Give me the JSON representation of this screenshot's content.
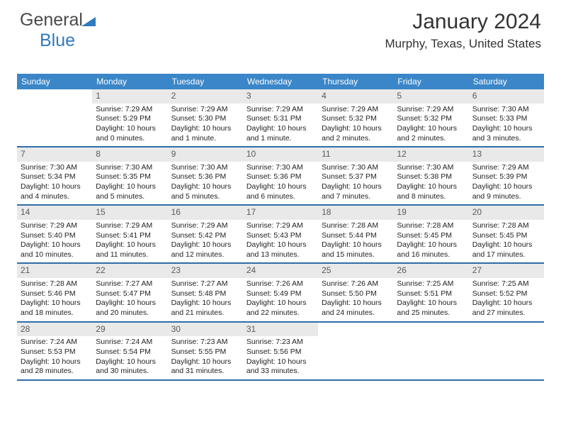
{
  "logo": {
    "part1": "General",
    "part2": "Blue"
  },
  "header": {
    "month_year": "January 2024",
    "location": "Murphy, Texas, United States"
  },
  "style": {
    "header_bg": "#3a86c8",
    "header_fg": "#ffffff",
    "daynum_bg": "#e9e9e9",
    "daynum_fg": "#5a5a5a",
    "row_border": "#2f6ea8",
    "body_fg": "#222222",
    "title_fg": "#333333",
    "logo_blue": "#2f7bbf",
    "logo_gray": "#4a4a4a",
    "th_fontsize": 12,
    "daynum_fontsize": 12,
    "body_fontsize": 10.5,
    "title_fontsize": 30,
    "loc_fontsize": 17
  },
  "weekdays": [
    "Sunday",
    "Monday",
    "Tuesday",
    "Wednesday",
    "Thursday",
    "Friday",
    "Saturday"
  ],
  "cells": [
    {
      "n": "",
      "sr": "",
      "ss": "",
      "dl": ""
    },
    {
      "n": "1",
      "sr": "Sunrise: 7:29 AM",
      "ss": "Sunset: 5:29 PM",
      "dl": "Daylight: 10 hours and 0 minutes."
    },
    {
      "n": "2",
      "sr": "Sunrise: 7:29 AM",
      "ss": "Sunset: 5:30 PM",
      "dl": "Daylight: 10 hours and 1 minute."
    },
    {
      "n": "3",
      "sr": "Sunrise: 7:29 AM",
      "ss": "Sunset: 5:31 PM",
      "dl": "Daylight: 10 hours and 1 minute."
    },
    {
      "n": "4",
      "sr": "Sunrise: 7:29 AM",
      "ss": "Sunset: 5:32 PM",
      "dl": "Daylight: 10 hours and 2 minutes."
    },
    {
      "n": "5",
      "sr": "Sunrise: 7:29 AM",
      "ss": "Sunset: 5:32 PM",
      "dl": "Daylight: 10 hours and 2 minutes."
    },
    {
      "n": "6",
      "sr": "Sunrise: 7:30 AM",
      "ss": "Sunset: 5:33 PM",
      "dl": "Daylight: 10 hours and 3 minutes."
    },
    {
      "n": "7",
      "sr": "Sunrise: 7:30 AM",
      "ss": "Sunset: 5:34 PM",
      "dl": "Daylight: 10 hours and 4 minutes."
    },
    {
      "n": "8",
      "sr": "Sunrise: 7:30 AM",
      "ss": "Sunset: 5:35 PM",
      "dl": "Daylight: 10 hours and 5 minutes."
    },
    {
      "n": "9",
      "sr": "Sunrise: 7:30 AM",
      "ss": "Sunset: 5:36 PM",
      "dl": "Daylight: 10 hours and 5 minutes."
    },
    {
      "n": "10",
      "sr": "Sunrise: 7:30 AM",
      "ss": "Sunset: 5:36 PM",
      "dl": "Daylight: 10 hours and 6 minutes."
    },
    {
      "n": "11",
      "sr": "Sunrise: 7:30 AM",
      "ss": "Sunset: 5:37 PM",
      "dl": "Daylight: 10 hours and 7 minutes."
    },
    {
      "n": "12",
      "sr": "Sunrise: 7:30 AM",
      "ss": "Sunset: 5:38 PM",
      "dl": "Daylight: 10 hours and 8 minutes."
    },
    {
      "n": "13",
      "sr": "Sunrise: 7:29 AM",
      "ss": "Sunset: 5:39 PM",
      "dl": "Daylight: 10 hours and 9 minutes."
    },
    {
      "n": "14",
      "sr": "Sunrise: 7:29 AM",
      "ss": "Sunset: 5:40 PM",
      "dl": "Daylight: 10 hours and 10 minutes."
    },
    {
      "n": "15",
      "sr": "Sunrise: 7:29 AM",
      "ss": "Sunset: 5:41 PM",
      "dl": "Daylight: 10 hours and 11 minutes."
    },
    {
      "n": "16",
      "sr": "Sunrise: 7:29 AM",
      "ss": "Sunset: 5:42 PM",
      "dl": "Daylight: 10 hours and 12 minutes."
    },
    {
      "n": "17",
      "sr": "Sunrise: 7:29 AM",
      "ss": "Sunset: 5:43 PM",
      "dl": "Daylight: 10 hours and 13 minutes."
    },
    {
      "n": "18",
      "sr": "Sunrise: 7:28 AM",
      "ss": "Sunset: 5:44 PM",
      "dl": "Daylight: 10 hours and 15 minutes."
    },
    {
      "n": "19",
      "sr": "Sunrise: 7:28 AM",
      "ss": "Sunset: 5:45 PM",
      "dl": "Daylight: 10 hours and 16 minutes."
    },
    {
      "n": "20",
      "sr": "Sunrise: 7:28 AM",
      "ss": "Sunset: 5:45 PM",
      "dl": "Daylight: 10 hours and 17 minutes."
    },
    {
      "n": "21",
      "sr": "Sunrise: 7:28 AM",
      "ss": "Sunset: 5:46 PM",
      "dl": "Daylight: 10 hours and 18 minutes."
    },
    {
      "n": "22",
      "sr": "Sunrise: 7:27 AM",
      "ss": "Sunset: 5:47 PM",
      "dl": "Daylight: 10 hours and 20 minutes."
    },
    {
      "n": "23",
      "sr": "Sunrise: 7:27 AM",
      "ss": "Sunset: 5:48 PM",
      "dl": "Daylight: 10 hours and 21 minutes."
    },
    {
      "n": "24",
      "sr": "Sunrise: 7:26 AM",
      "ss": "Sunset: 5:49 PM",
      "dl": "Daylight: 10 hours and 22 minutes."
    },
    {
      "n": "25",
      "sr": "Sunrise: 7:26 AM",
      "ss": "Sunset: 5:50 PM",
      "dl": "Daylight: 10 hours and 24 minutes."
    },
    {
      "n": "26",
      "sr": "Sunrise: 7:25 AM",
      "ss": "Sunset: 5:51 PM",
      "dl": "Daylight: 10 hours and 25 minutes."
    },
    {
      "n": "27",
      "sr": "Sunrise: 7:25 AM",
      "ss": "Sunset: 5:52 PM",
      "dl": "Daylight: 10 hours and 27 minutes."
    },
    {
      "n": "28",
      "sr": "Sunrise: 7:24 AM",
      "ss": "Sunset: 5:53 PM",
      "dl": "Daylight: 10 hours and 28 minutes."
    },
    {
      "n": "29",
      "sr": "Sunrise: 7:24 AM",
      "ss": "Sunset: 5:54 PM",
      "dl": "Daylight: 10 hours and 30 minutes."
    },
    {
      "n": "30",
      "sr": "Sunrise: 7:23 AM",
      "ss": "Sunset: 5:55 PM",
      "dl": "Daylight: 10 hours and 31 minutes."
    },
    {
      "n": "31",
      "sr": "Sunrise: 7:23 AM",
      "ss": "Sunset: 5:56 PM",
      "dl": "Daylight: 10 hours and 33 minutes."
    },
    {
      "n": "",
      "sr": "",
      "ss": "",
      "dl": ""
    },
    {
      "n": "",
      "sr": "",
      "ss": "",
      "dl": ""
    },
    {
      "n": "",
      "sr": "",
      "ss": "",
      "dl": ""
    }
  ]
}
